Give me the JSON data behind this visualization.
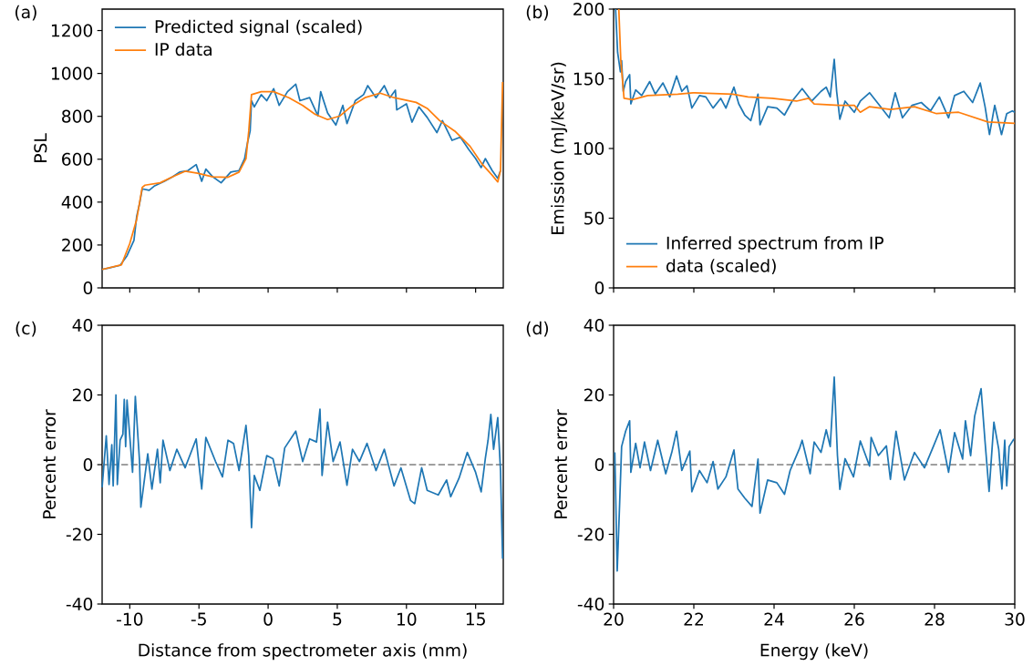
{
  "chart_data": [
    {
      "type": "line",
      "title": "(a)",
      "ylabel": "PSL",
      "xlim": [
        -12,
        17
      ],
      "ylim": [
        0,
        1300
      ],
      "xticks": [
        {
          "value": -10,
          "label": null
        },
        {
          "value": -5,
          "label": null
        },
        {
          "value": 0,
          "label": null
        },
        {
          "value": 5,
          "label": null
        },
        {
          "value": 10,
          "label": null
        },
        {
          "value": 15,
          "label": null
        }
      ],
      "yticks": [
        0,
        200,
        400,
        600,
        800,
        1000,
        1200
      ],
      "tick_labels": "y",
      "legend": "top left",
      "series": [
        {
          "name": "Predicted signal (scaled)",
          "color": "#1f77b4",
          "x": [
            -12,
            -11.5,
            -10.7,
            -10.2,
            -9.7,
            -9.5,
            -9.3,
            -9.1,
            -8.6,
            -8.2,
            -7.5,
            -6.9,
            -6.4,
            -5.8,
            -5.2,
            -4.8,
            -4.5,
            -4.0,
            -3.4,
            -2.7,
            -2.1,
            -1.7,
            -1.5,
            -1.3,
            -1.2,
            -1.0,
            -0.5,
            -0.1,
            0.4,
            0.8,
            1.4,
            2.0,
            2.3,
            3.0,
            3.6,
            3.8,
            4.3,
            4.9,
            5.4,
            5.7,
            6.3,
            6.9,
            7.2,
            7.8,
            8.4,
            8.8,
            9.2,
            9.3,
            10.0,
            10.4,
            10.9,
            11.5,
            12.2,
            12.6,
            13.3,
            13.9,
            14.5,
            15.0,
            15.4,
            15.7,
            16.2,
            16.6,
            16.8
          ],
          "values": [
            86,
            93,
            105,
            150,
            221,
            334,
            391,
            462,
            455,
            476,
            497,
            518,
            540,
            547,
            575,
            497,
            554,
            518,
            490,
            540,
            547,
            603,
            674,
            731,
            873,
            844,
            901,
            873,
            929,
            851,
            915,
            950,
            873,
            887,
            802,
            915,
            816,
            759,
            851,
            766,
            873,
            901,
            943,
            887,
            943,
            887,
            922,
            830,
            858,
            773,
            844,
            795,
            724,
            780,
            688,
            703,
            646,
            603,
            561,
            603,
            547,
            511,
            547
          ]
        },
        {
          "name": "IP data",
          "color": "#ff7f0e",
          "x": [
            -12,
            -10.6,
            -10.0,
            -9.5,
            -9.1,
            -8.9,
            -7.8,
            -6.9,
            -6.0,
            -5.1,
            -4.0,
            -2.9,
            -2.1,
            -1.6,
            -1.4,
            -1.2,
            -0.5,
            0.4,
            1.5,
            2.5,
            3.4,
            4.3,
            5.2,
            6.1,
            7.0,
            8.1,
            9.1,
            10.7,
            11.5,
            12.4,
            13.5,
            14.6,
            15.5,
            16.2,
            16.6,
            16.8,
            16.95
          ],
          "values": [
            86,
            108,
            207,
            320,
            469,
            479,
            490,
            518,
            544,
            535,
            518,
            516,
            540,
            603,
            731,
            901,
            915,
            915,
            887,
            851,
            809,
            785,
            802,
            851,
            887,
            908,
            887,
            865,
            837,
            780,
            731,
            660,
            575,
            525,
            494,
            547,
            960
          ]
        }
      ]
    },
    {
      "type": "line",
      "title": "(b)",
      "ylabel": "Emission (mJ/keV/sr)",
      "xlim": [
        20,
        30
      ],
      "ylim": [
        0,
        200
      ],
      "xticks": [
        {
          "value": 20,
          "label": null
        },
        {
          "value": 22,
          "label": null
        },
        {
          "value": 24,
          "label": null
        },
        {
          "value": 26,
          "label": null
        },
        {
          "value": 28,
          "label": null
        },
        {
          "value": 30,
          "label": null
        }
      ],
      "yticks": [
        0,
        50,
        100,
        150,
        200
      ],
      "tick_labels": "y",
      "legend": "bottom left",
      "series": [
        {
          "name": "Inferred spectrum from IP",
          "color": "#1f77b4",
          "x": [
            20.05,
            20.1,
            20.17,
            20.2,
            20.24,
            20.3,
            20.4,
            20.43,
            20.55,
            20.7,
            20.9,
            21.04,
            21.23,
            21.4,
            21.57,
            21.7,
            21.83,
            21.95,
            22.14,
            22.3,
            22.48,
            22.67,
            22.8,
            23.0,
            23.12,
            23.27,
            23.42,
            23.6,
            23.65,
            23.84,
            24.07,
            24.26,
            24.45,
            24.7,
            24.94,
            25.17,
            25.3,
            25.4,
            25.5,
            25.56,
            25.64,
            25.77,
            26.0,
            26.15,
            26.38,
            26.6,
            26.87,
            27.02,
            27.2,
            27.44,
            27.67,
            27.9,
            28.12,
            28.35,
            28.5,
            28.73,
            28.95,
            29.14,
            29.26,
            29.37,
            29.5,
            29.67,
            29.8,
            29.94,
            30.0
          ],
          "values": [
            200,
            169,
            155,
            163,
            141,
            148,
            153,
            132,
            142,
            138,
            148,
            139,
            147,
            137,
            152,
            141,
            145,
            129,
            138,
            137,
            129,
            136,
            129,
            144,
            132,
            124,
            120,
            139,
            117,
            130,
            129,
            124,
            134,
            143,
            134,
            141,
            144,
            137,
            164,
            141,
            121,
            134,
            126,
            134,
            140,
            132,
            122,
            140,
            122,
            131,
            133,
            127,
            137,
            122,
            138,
            141,
            133,
            147,
            130,
            110,
            131,
            110,
            125,
            127,
            126
          ]
        },
        {
          "name": "data (scaled)",
          "color": "#ff7f0e",
          "x": [
            20.13,
            20.18,
            20.26,
            20.47,
            20.85,
            21.6,
            21.98,
            22.97,
            23.35,
            23.95,
            24.56,
            24.86,
            25.0,
            25.62,
            26.0,
            26.15,
            26.38,
            26.9,
            27.5,
            28.05,
            28.6,
            29.33,
            30.0
          ],
          "values": [
            200,
            163,
            136,
            135,
            138,
            139,
            140,
            139,
            137,
            136,
            134,
            136,
            132,
            131,
            131,
            126,
            130,
            128,
            130,
            125,
            126,
            119,
            118
          ]
        }
      ]
    },
    {
      "type": "line",
      "title": "(c)",
      "xlabel": "Distance from spectrometer axis (mm)",
      "ylabel": "Percent error",
      "xlim": [
        -12,
        17
      ],
      "ylim": [
        -40,
        40
      ],
      "xticks": [
        -10,
        -5,
        0,
        5,
        10,
        15
      ],
      "yticks": [
        -40,
        -20,
        0,
        20,
        40
      ],
      "ref_lines": [
        {
          "axis": "y",
          "value": 0,
          "color": "#808080",
          "line_style": "dashed"
        }
      ],
      "series": [
        {
          "color": "#1f77b4",
          "x": [
            -12,
            -11.7,
            -11.5,
            -11.3,
            -11.2,
            -11.0,
            -10.9,
            -10.7,
            -10.5,
            -10.4,
            -10.3,
            -10.2,
            -9.8,
            -9.6,
            -9.3,
            -9.2,
            -8.7,
            -8.4,
            -8.0,
            -7.8,
            -7.6,
            -7.1,
            -6.6,
            -6.0,
            -5.2,
            -4.8,
            -4.5,
            -3.8,
            -3.3,
            -2.9,
            -2.5,
            -2.1,
            -1.6,
            -1.4,
            -1.2,
            -1.0,
            -0.6,
            -0.1,
            0.35,
            0.8,
            1.2,
            2.0,
            2.5,
            3.0,
            3.5,
            3.75,
            3.9,
            4.3,
            4.7,
            5.2,
            5.7,
            6.1,
            6.6,
            7.15,
            7.8,
            8.4,
            9.1,
            9.6,
            10.3,
            10.6,
            11.1,
            11.5,
            12.3,
            12.9,
            13.2,
            13.8,
            14.4,
            15.0,
            15.4,
            15.7,
            15.9,
            16.1,
            16.3,
            16.6,
            16.8,
            16.95
          ],
          "values": [
            -6.5,
            8.3,
            -5.7,
            5.7,
            -6.1,
            20,
            -5.7,
            7.0,
            8.7,
            18.7,
            5.2,
            18.5,
            -2.2,
            19.6,
            1.3,
            -12.2,
            3.1,
            -7.0,
            4.4,
            -5.2,
            7.0,
            -1.7,
            4.4,
            -0.9,
            7.4,
            -7.0,
            7.8,
            0.9,
            -3.5,
            7.0,
            6.1,
            -1.7,
            11.3,
            2.6,
            -18.1,
            -3.1,
            -7.4,
            2.6,
            1.7,
            -6.1,
            4.8,
            9.6,
            0.9,
            7.4,
            6.5,
            15.9,
            -3.1,
            12.2,
            0.9,
            6.5,
            -5.9,
            4.4,
            0.9,
            6.1,
            -1.7,
            4.4,
            -6.1,
            -0.9,
            -10.3,
            -11.2,
            -0.9,
            -7.4,
            -8.7,
            -4.4,
            -9.2,
            -3.9,
            3.5,
            -2.2,
            -7.8,
            1.7,
            7.0,
            14.4,
            4.4,
            13.5,
            -1.7,
            -27
          ]
        }
      ]
    },
    {
      "type": "line",
      "title": "(d)",
      "xlabel": "Energy (keV)",
      "ylabel": "Percent error",
      "xlim": [
        20,
        30
      ],
      "ylim": [
        -40,
        40
      ],
      "xticks": [
        20,
        22,
        24,
        26,
        28,
        30
      ],
      "yticks": [
        -40,
        -20,
        0,
        20,
        40
      ],
      "ref_lines": [
        {
          "axis": "y",
          "value": 0,
          "color": "#808080",
          "line_style": "dashed"
        }
      ],
      "series": [
        {
          "color": "#1f77b4",
          "x": [
            20.03,
            20.09,
            20.15,
            20.2,
            20.3,
            20.4,
            20.43,
            20.55,
            20.66,
            20.77,
            20.92,
            21.1,
            21.3,
            21.45,
            21.57,
            21.7,
            21.9,
            21.95,
            22.14,
            22.33,
            22.48,
            22.6,
            22.8,
            23.0,
            23.1,
            23.27,
            23.45,
            23.6,
            23.65,
            23.84,
            24.07,
            24.26,
            24.4,
            24.64,
            24.7,
            24.9,
            25.0,
            25.17,
            25.3,
            25.4,
            25.5,
            25.58,
            25.64,
            25.77,
            25.98,
            26.15,
            26.38,
            26.42,
            26.6,
            26.8,
            26.9,
            27.04,
            27.25,
            27.5,
            27.75,
            27.97,
            28.14,
            28.35,
            28.5,
            28.7,
            28.77,
            28.9,
            29.0,
            29.16,
            29.26,
            29.36,
            29.48,
            29.6,
            29.68,
            29.75,
            29.8,
            29.86,
            29.98
          ],
          "values": [
            3.5,
            -30.5,
            -11.3,
            5.2,
            9.6,
            12.6,
            -2.2,
            6.1,
            -0.9,
            6.5,
            -1.7,
            7.0,
            -2.6,
            3.5,
            9.6,
            -1.7,
            3.9,
            -7.8,
            -1.7,
            -5.2,
            0.9,
            -7.0,
            -3.5,
            4.2,
            -7.0,
            -9.6,
            -12.0,
            1.6,
            -13.9,
            -4.4,
            -5.2,
            -8.5,
            -1.7,
            4.8,
            7.0,
            -2.6,
            6.5,
            3.5,
            10.0,
            5.2,
            25.1,
            2.6,
            -7.1,
            1.7,
            -3.5,
            6.8,
            -0.4,
            7.8,
            2.6,
            5.4,
            -4.2,
            9.6,
            -4.4,
            3.5,
            -0.9,
            5.2,
            10.0,
            -2.2,
            9.2,
            1.6,
            12.6,
            2.6,
            13.9,
            21.8,
            6.5,
            -7.7,
            12.2,
            4.4,
            -7.0,
            7.0,
            -6.1,
            5.2,
            7.4
          ]
        }
      ]
    }
  ]
}
